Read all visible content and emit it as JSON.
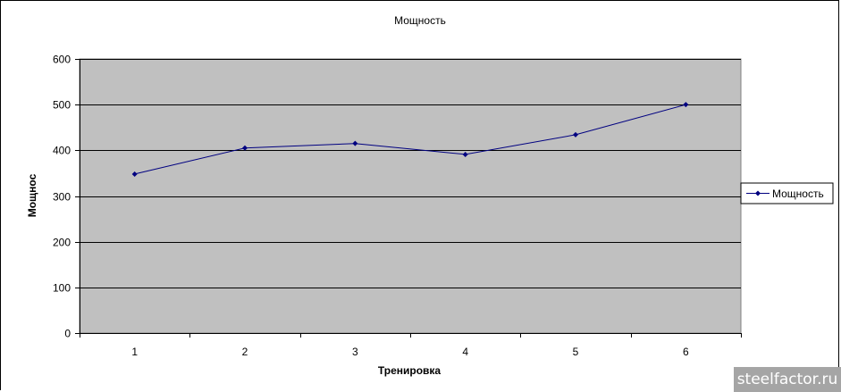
{
  "chart_data": {
    "type": "line",
    "title": "Мощность",
    "xlabel": "Тренировка",
    "ylabel": "Мощнос",
    "categories": [
      "1",
      "2",
      "3",
      "4",
      "5",
      "6"
    ],
    "series": [
      {
        "name": "Мощность",
        "values": [
          348,
          405,
          415,
          391,
          434,
          500
        ],
        "color": "#000080"
      }
    ],
    "ylim": [
      0,
      600
    ],
    "yticks": [
      "0",
      "100",
      "200",
      "300",
      "400",
      "500",
      "600"
    ],
    "grid": true,
    "legend": "right",
    "plot_background": "#c0c0c0"
  },
  "watermark": "steelfactor.ru"
}
